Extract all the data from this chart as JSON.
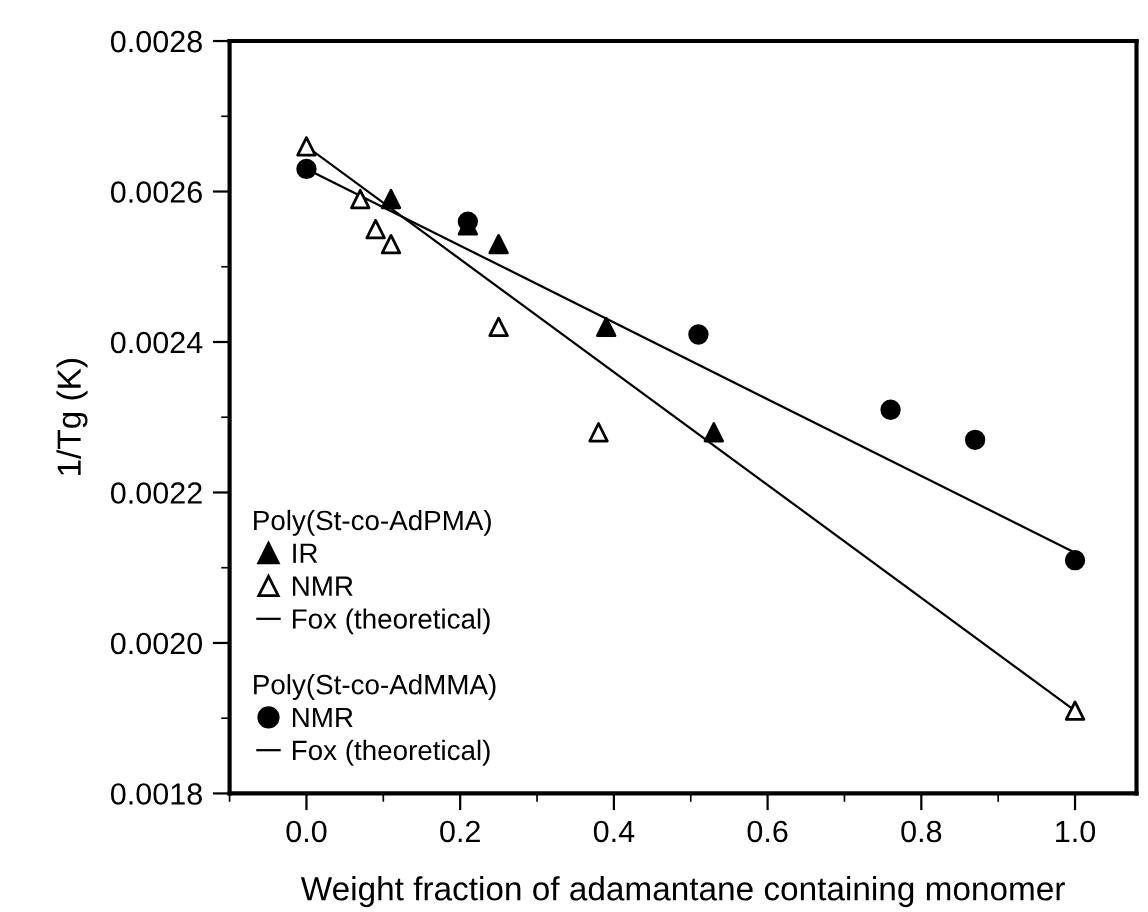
{
  "chart_data": {
    "type": "scatter",
    "xlabel": "Weight fraction of adamantane containing monomer",
    "ylabel": "1/Tg (K)",
    "annotations": [
      "Poly(St-co-AdPMA)",
      "Poly(St-co-AdMMA)"
    ],
    "series": [
      {
        "name": "IR",
        "marker": "triangle",
        "color": "#000000",
        "x": [
          0.11,
          0.21,
          0.25,
          0.39,
          0.53
        ],
        "values": [
          0.00259,
          0.002555,
          0.00253,
          0.00242,
          0.00228
        ]
      },
      {
        "name": "NMR",
        "marker": "triangle",
        "color": "#ffffff",
        "x": [
          0.0,
          0.07,
          0.09,
          0.11,
          0.25,
          0.38,
          1.0
        ],
        "values": [
          0.00266,
          0.00259,
          0.00255,
          0.00253,
          0.00242,
          0.00228,
          0.00191
        ]
      },
      {
        "name": "Fox (theoretical)",
        "type": "line",
        "marker": "none",
        "color": "#000000",
        "x": [
          0.0,
          1.0
        ],
        "values": [
          0.00266,
          0.00191
        ]
      },
      {
        "name": "NMR",
        "marker": "circle",
        "color": "#000000",
        "x": [
          0.0,
          0.21,
          0.51,
          0.76,
          0.87,
          1.0
        ],
        "values": [
          0.00263,
          0.00256,
          0.00241,
          0.00231,
          0.00227,
          0.00211
        ]
      },
      {
        "name": "Fox (theoretical)",
        "type": "line",
        "marker": "none",
        "color": "#000000",
        "x": [
          0.0,
          1.0
        ],
        "values": [
          0.00263,
          0.00212
        ]
      }
    ],
    "xlim": [
      -0.1,
      1.08
    ],
    "xticks": [
      {
        "value": 0,
        "label": "0.0"
      },
      0.2,
      0.4,
      0.6,
      0.8,
      {
        "value": 1,
        "label": "1.0"
      }
    ],
    "ylim": [
      0.0018,
      0.0028
    ],
    "yticks": [
      0.0018,
      {
        "value": 0.002,
        "label": "0.0020"
      },
      0.0022,
      0.0024,
      0.0026,
      0.0028
    ],
    "grid": false,
    "legend": "bottom left"
  }
}
